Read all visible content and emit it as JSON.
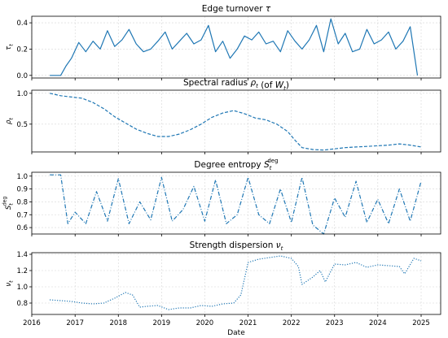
{
  "chart_data": [
    {
      "type": "line",
      "title_main": "Edge turnover ",
      "title_symbol": "τ",
      "ylabel": "τ_t",
      "ylabel_main": "τ",
      "ylabel_sub": "t",
      "ylim": [
        -0.02,
        0.45
      ],
      "yticks": [
        0.0,
        0.2,
        0.4
      ],
      "ytick_labels": [
        "0.0",
        "0.2",
        "0.4"
      ],
      "line_style": "solid",
      "grid": true,
      "series": [
        {
          "x": [
            "2016-06-01",
            "2016-09-01",
            "2016-10-15",
            "2016-12-01",
            "2017-02-01",
            "2017-04-01",
            "2017-06-01",
            "2017-08-01",
            "2017-10-01",
            "2017-12-01",
            "2018-02-01",
            "2018-04-01",
            "2018-06-01",
            "2018-08-01",
            "2018-10-01",
            "2018-12-01",
            "2019-02-01",
            "2019-04-01",
            "2019-06-01",
            "2019-08-01",
            "2019-10-01",
            "2019-12-01",
            "2020-02-01",
            "2020-04-01",
            "2020-06-01",
            "2020-08-01",
            "2020-10-01",
            "2020-12-01",
            "2021-02-01",
            "2021-04-01",
            "2021-06-01",
            "2021-08-01",
            "2021-10-01",
            "2021-12-01",
            "2022-02-01",
            "2022-04-01",
            "2022-06-01",
            "2022-08-01",
            "2022-10-01",
            "2022-12-01",
            "2023-02-01",
            "2023-04-01",
            "2023-06-01",
            "2023-08-01",
            "2023-10-01",
            "2023-12-01",
            "2024-02-01",
            "2024-04-01",
            "2024-06-01",
            "2024-08-01",
            "2024-10-01",
            "2024-12-01"
          ],
          "values": [
            0.0,
            0.0,
            0.07,
            0.13,
            0.25,
            0.18,
            0.26,
            0.2,
            0.34,
            0.22,
            0.27,
            0.35,
            0.24,
            0.18,
            0.2,
            0.26,
            0.33,
            0.2,
            0.26,
            0.32,
            0.24,
            0.27,
            0.38,
            0.18,
            0.26,
            0.13,
            0.2,
            0.3,
            0.27,
            0.33,
            0.24,
            0.26,
            0.18,
            0.34,
            0.26,
            0.2,
            0.27,
            0.38,
            0.18,
            0.43,
            0.24,
            0.32,
            0.18,
            0.2,
            0.35,
            0.24,
            0.27,
            0.33,
            0.2,
            0.26,
            0.37,
            0.0
          ]
        }
      ]
    },
    {
      "type": "line",
      "title_main": "Spectral radius ",
      "title_symbol": "ρ",
      "title_sub": "t",
      "title_after": " (of ",
      "title_sym2": "W",
      "title_sub2": "t",
      "title_close": ")",
      "ylabel": "ρ_t",
      "ylabel_main": "ρ",
      "ylabel_sub": "t",
      "ylim": [
        0.05,
        1.05
      ],
      "yticks": [
        0.5,
        1.0
      ],
      "ytick_labels": [
        "0.5",
        "1.0"
      ],
      "line_style": "dashed",
      "grid": true,
      "series": [
        {
          "x": [
            "2016-06-01",
            "2016-09-01",
            "2016-12-01",
            "2017-03-01",
            "2017-06-01",
            "2017-09-01",
            "2017-12-01",
            "2018-03-01",
            "2018-06-01",
            "2018-09-01",
            "2018-12-01",
            "2019-03-01",
            "2019-06-01",
            "2019-09-01",
            "2019-12-01",
            "2020-03-01",
            "2020-06-01",
            "2020-09-01",
            "2020-12-01",
            "2021-03-01",
            "2021-06-01",
            "2021-09-01",
            "2021-12-01",
            "2022-02-01",
            "2022-04-01",
            "2022-07-01",
            "2022-10-01",
            "2023-01-01",
            "2023-04-01",
            "2023-07-01",
            "2023-10-01",
            "2024-01-01",
            "2024-04-01",
            "2024-07-01",
            "2024-10-01",
            "2025-01-01"
          ],
          "values": [
            1.0,
            0.96,
            0.94,
            0.92,
            0.85,
            0.75,
            0.62,
            0.52,
            0.42,
            0.35,
            0.3,
            0.3,
            0.34,
            0.41,
            0.5,
            0.61,
            0.68,
            0.72,
            0.67,
            0.6,
            0.57,
            0.5,
            0.38,
            0.24,
            0.12,
            0.09,
            0.08,
            0.1,
            0.12,
            0.13,
            0.14,
            0.15,
            0.16,
            0.18,
            0.16,
            0.13
          ]
        }
      ]
    },
    {
      "type": "line",
      "title_main": "Degree entropy ",
      "title_symbol": "S",
      "title_sub": "t",
      "title_sup": "deg",
      "ylabel": "S_t^deg",
      "ylabel_main": "S",
      "ylabel_sub": "t",
      "ylabel_sup": "deg",
      "ylim": [
        0.55,
        1.03
      ],
      "yticks": [
        0.6,
        0.7,
        0.8,
        0.9,
        1.0
      ],
      "ytick_labels": [
        "0.6",
        "0.7",
        "0.8",
        "0.9",
        "1.0"
      ],
      "line_style": "dashdot",
      "grid": true,
      "series": [
        {
          "x": [
            "2016-06-01",
            "2016-09-01",
            "2016-11-01",
            "2017-01-01",
            "2017-04-01",
            "2017-07-01",
            "2017-10-01",
            "2018-01-01",
            "2018-04-01",
            "2018-07-01",
            "2018-10-01",
            "2019-01-01",
            "2019-04-01",
            "2019-07-01",
            "2019-10-01",
            "2020-01-01",
            "2020-04-01",
            "2020-07-01",
            "2020-10-01",
            "2021-01-01",
            "2021-04-01",
            "2021-07-01",
            "2021-10-01",
            "2022-01-01",
            "2022-04-01",
            "2022-07-01",
            "2022-10-01",
            "2023-01-01",
            "2023-04-01",
            "2023-07-01",
            "2023-10-01",
            "2024-01-01",
            "2024-04-01",
            "2024-07-01",
            "2024-10-01",
            "2025-01-01"
          ],
          "values": [
            1.01,
            1.01,
            0.63,
            0.72,
            0.63,
            0.88,
            0.65,
            0.98,
            0.63,
            0.8,
            0.66,
            0.99,
            0.65,
            0.74,
            0.92,
            0.65,
            0.97,
            0.63,
            0.7,
            0.99,
            0.7,
            0.63,
            0.9,
            0.64,
            0.99,
            0.62,
            0.55,
            0.83,
            0.68,
            0.96,
            0.64,
            0.82,
            0.63,
            0.9,
            0.65,
            0.96
          ]
        }
      ]
    },
    {
      "type": "line",
      "title_main": "Strength dispersion ",
      "title_symbol": "ν",
      "title_sub": "t",
      "ylabel": "ν_t",
      "ylabel_main": "ν",
      "ylabel_sub": "t",
      "ylim": [
        0.66,
        1.42
      ],
      "yticks": [
        0.8,
        1.0,
        1.2,
        1.4
      ],
      "ytick_labels": [
        "0.8",
        "1.0",
        "1.2",
        "1.4"
      ],
      "line_style": "dotted",
      "grid": true,
      "series": [
        {
          "x": [
            "2016-06-01",
            "2016-09-01",
            "2016-12-01",
            "2017-03-01",
            "2017-06-01",
            "2017-09-01",
            "2017-12-01",
            "2018-03-01",
            "2018-05-01",
            "2018-07-01",
            "2018-09-01",
            "2018-12-01",
            "2019-03-01",
            "2019-06-01",
            "2019-09-01",
            "2019-12-01",
            "2020-03-01",
            "2020-06-01",
            "2020-09-01",
            "2020-11-01",
            "2021-01-01",
            "2021-04-01",
            "2021-07-01",
            "2021-10-01",
            "2022-01-01",
            "2022-03-01",
            "2022-04-01",
            "2022-07-01",
            "2022-09-01",
            "2022-10-15",
            "2023-01-01",
            "2023-04-01",
            "2023-07-01",
            "2023-10-01",
            "2024-01-01",
            "2024-04-01",
            "2024-07-01",
            "2024-08-15",
            "2024-11-01",
            "2025-01-01"
          ],
          "values": [
            0.84,
            0.83,
            0.82,
            0.8,
            0.79,
            0.8,
            0.86,
            0.93,
            0.9,
            0.75,
            0.76,
            0.77,
            0.72,
            0.74,
            0.74,
            0.77,
            0.76,
            0.79,
            0.8,
            0.9,
            1.3,
            1.34,
            1.36,
            1.38,
            1.35,
            1.25,
            1.03,
            1.12,
            1.2,
            1.06,
            1.28,
            1.27,
            1.3,
            1.24,
            1.27,
            1.26,
            1.25,
            1.16,
            1.35,
            1.32
          ]
        }
      ]
    }
  ],
  "xaxis": {
    "label": "Date",
    "range": [
      "2016-01-01",
      "2025-06-15"
    ],
    "ticks": [
      "2016-01-01",
      "2017-01-01",
      "2018-01-01",
      "2019-01-01",
      "2020-01-01",
      "2021-01-01",
      "2022-01-01",
      "2023-01-01",
      "2024-01-01",
      "2025-01-01"
    ],
    "tick_labels": [
      "2016",
      "2017",
      "2018",
      "2019",
      "2020",
      "2021",
      "2022",
      "2023",
      "2024",
      "2025"
    ]
  },
  "colors": {
    "series": "#1f77b4",
    "frame": "#000000",
    "grid": "#d6d6d6"
  }
}
